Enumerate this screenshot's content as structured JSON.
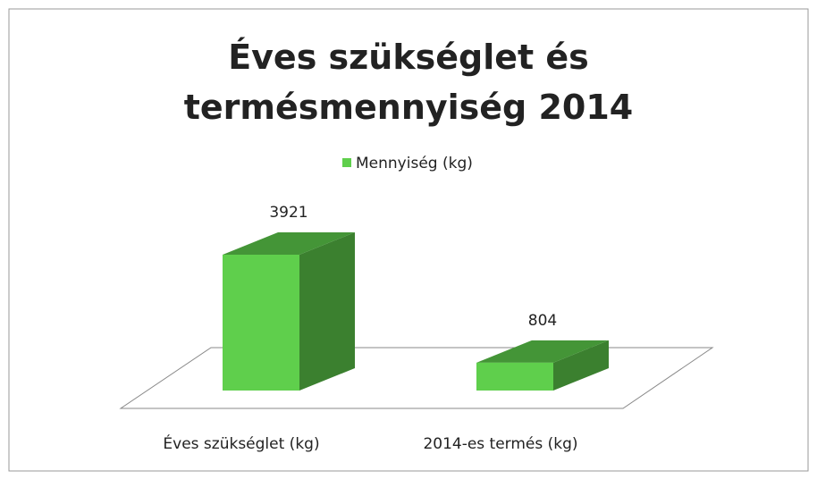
{
  "chart_data": {
    "type": "bar3d",
    "title": "Éves szükséglet és termésmennyiség 2014",
    "categories": [
      "Éves szükséglet (kg)",
      "2014-es termés (kg)"
    ],
    "series": [
      {
        "name": "Mennyiség (kg)",
        "color": "#5fcf4c",
        "values": [
          3921,
          804
        ]
      }
    ],
    "legend": "top"
  }
}
